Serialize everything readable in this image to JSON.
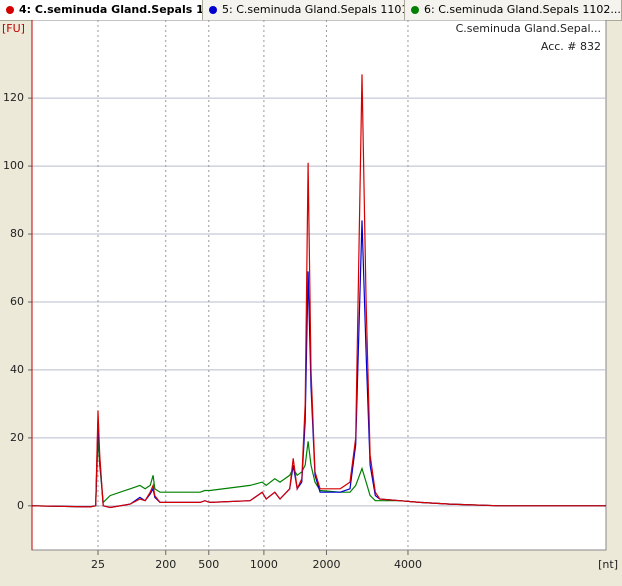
{
  "chart_data": {
    "type": "line",
    "y_label": "[FU]",
    "x_label": "[nt]",
    "sample_label": "C.seminuda Gland.Sepal...",
    "acc_label": "Acc. # 832",
    "x": [
      0,
      10.1,
      11.1,
      11.5,
      11.8,
      12.4,
      13.6,
      17.1,
      18.8,
      19.7,
      20.6,
      21.1,
      21.4,
      22.3,
      29.3,
      30.1,
      31.0,
      38.0,
      40.1,
      40.8,
      42.3,
      43.2,
      44.9,
      45.5,
      46.2,
      47.0,
      47.6,
      48.1,
      48.6,
      49.3,
      50.2,
      53.7,
      55.4,
      56.4,
      57.5,
      58.2,
      58.9,
      59.8,
      60.6,
      64.1,
      67.6,
      72.8,
      81.5,
      100
    ],
    "series": [
      {
        "name": "4: C.seminuda Gland.Sepals 1...",
        "color": "#d40000",
        "values": [
          0,
          -0.3,
          0,
          28,
          15,
          0,
          -0.5,
          0.5,
          2,
          1.5,
          4,
          6,
          3,
          1,
          1,
          1.5,
          1,
          1.5,
          4,
          2,
          4,
          2,
          5,
          14,
          5,
          8,
          30,
          101,
          40,
          10,
          5,
          5,
          7,
          20,
          127,
          60,
          15,
          4,
          2,
          1.5,
          1,
          0.5,
          0,
          0
        ]
      },
      {
        "name": "5: C.seminuda Gland.Sepals 1101...",
        "color": "#0000d0",
        "values": [
          0,
          -0.3,
          0,
          25,
          14,
          0,
          -0.5,
          0.5,
          2.5,
          1.5,
          3.5,
          5,
          2.5,
          1,
          1,
          1.5,
          1,
          1.5,
          4,
          2,
          4,
          2,
          5,
          12,
          5,
          7,
          25,
          69,
          35,
          9,
          4,
          4,
          5,
          18,
          84,
          45,
          12,
          3,
          2,
          1.5,
          1,
          0.5,
          0,
          0
        ]
      },
      {
        "name": "6: C.seminuda Gland.Sepals 1102...",
        "color": "#008000",
        "values": [
          0,
          -0.3,
          0,
          20,
          12,
          1,
          3,
          5,
          6,
          5,
          6,
          9,
          5,
          4,
          4,
          4.5,
          4.5,
          6,
          7,
          6,
          8,
          7,
          9,
          11,
          9,
          10,
          12,
          19,
          12,
          7,
          4.5,
          4,
          4,
          6,
          11,
          7,
          3,
          1.5,
          1.5,
          1.5,
          1,
          0.5,
          0,
          0
        ]
      }
    ],
    "xlim": [
      0,
      100
    ],
    "xticks": [
      {
        "value": 11.5,
        "label": "25"
      },
      {
        "value": 23.3,
        "label": "200"
      },
      {
        "value": 30.8,
        "label": "500"
      },
      {
        "value": 40.4,
        "label": "1000"
      },
      {
        "value": 51.3,
        "label": "2000"
      },
      {
        "value": 65.5,
        "label": "4000"
      }
    ],
    "ylim": [
      -13,
      143
    ],
    "yticks": [
      0,
      20,
      40,
      60,
      80,
      100,
      120
    ],
    "grid": true
  }
}
